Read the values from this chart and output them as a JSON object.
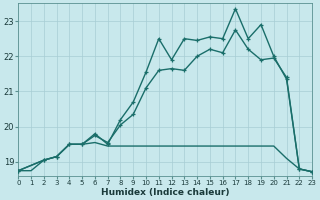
{
  "xlabel": "Humidex (Indice chaleur)",
  "bg_color": "#c8e8ec",
  "grid_color": "#a8cdd4",
  "line_color": "#1a6e6a",
  "xlim": [
    0,
    23
  ],
  "ylim": [
    18.6,
    23.5
  ],
  "yticks": [
    19,
    20,
    21,
    22,
    23
  ],
  "xticks": [
    0,
    1,
    2,
    3,
    4,
    5,
    6,
    7,
    8,
    9,
    10,
    11,
    12,
    13,
    14,
    15,
    16,
    17,
    18,
    19,
    20,
    21,
    22,
    23
  ],
  "line_flat_x": [
    0,
    1,
    2,
    3,
    4,
    5,
    6,
    7,
    8,
    9,
    10,
    11,
    12,
    13,
    14,
    15,
    16,
    17,
    18,
    19,
    20,
    21,
    22,
    23
  ],
  "line_flat_y": [
    18.75,
    18.75,
    19.05,
    19.15,
    19.5,
    19.5,
    19.55,
    19.45,
    19.45,
    19.45,
    19.45,
    19.45,
    19.45,
    19.45,
    19.45,
    19.45,
    19.45,
    19.45,
    19.45,
    19.45,
    19.45,
    19.1,
    18.8,
    18.72
  ],
  "line_mid_x": [
    0,
    2,
    3,
    4,
    5,
    6,
    7,
    8,
    9,
    10,
    11,
    12,
    13,
    14,
    15,
    16,
    17,
    18,
    19,
    20,
    21,
    22,
    23
  ],
  "line_mid_y": [
    18.75,
    19.05,
    19.15,
    19.5,
    19.5,
    19.75,
    19.55,
    20.05,
    20.35,
    21.1,
    21.6,
    21.65,
    21.6,
    22.0,
    22.2,
    22.1,
    22.75,
    22.2,
    21.9,
    21.95,
    21.4,
    18.8,
    18.72
  ],
  "line_high_x": [
    0,
    2,
    3,
    4,
    5,
    6,
    7,
    8,
    9,
    10,
    11,
    12,
    13,
    14,
    15,
    16,
    17,
    18,
    19,
    20,
    21,
    22,
    23
  ],
  "line_high_y": [
    18.75,
    19.05,
    19.15,
    19.5,
    19.5,
    19.8,
    19.5,
    20.2,
    20.7,
    21.55,
    22.5,
    21.9,
    22.5,
    22.45,
    22.55,
    22.5,
    23.35,
    22.5,
    22.9,
    22.0,
    21.35,
    18.8,
    18.72
  ]
}
